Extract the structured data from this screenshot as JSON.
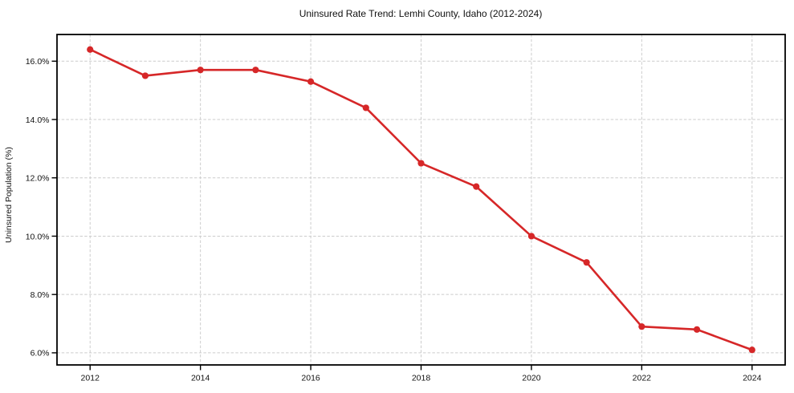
{
  "figure": {
    "background_color": "#ffffff"
  },
  "chart_data": {
    "type": "line",
    "title": "Uninsured Rate Trend: Lemhi County, Idaho (2012-2024)",
    "xlabel": "",
    "ylabel": "Uninsured Population (%)",
    "x": [
      2012,
      2013,
      2014,
      2015,
      2016,
      2017,
      2018,
      2019,
      2020,
      2021,
      2022,
      2023,
      2024
    ],
    "y": [
      16.4,
      15.5,
      15.7,
      15.7,
      15.3,
      14.4,
      12.5,
      11.7,
      10.0,
      9.1,
      6.9,
      6.8,
      6.1
    ],
    "x_tick_values": [
      2012,
      2014,
      2016,
      2018,
      2020,
      2022,
      2024
    ],
    "x_tick_labels": [
      "2012",
      "2014",
      "2016",
      "2018",
      "2020",
      "2022",
      "2024"
    ],
    "y_tick_values": [
      6,
      8,
      10,
      12,
      14,
      16
    ],
    "y_tick_labels": [
      "6.0%",
      "8.0%",
      "10.0%",
      "12.0%",
      "14.0%",
      "16.0%"
    ],
    "xlim": [
      2011.4,
      2024.6
    ],
    "ylim": [
      5.585,
      16.915
    ],
    "grid": true,
    "grid_style": "dashed",
    "legend_position": "none",
    "line_color": "#d62728",
    "marker": "circle",
    "grid_color": "#cccccc",
    "spine_color": "#000000"
  }
}
